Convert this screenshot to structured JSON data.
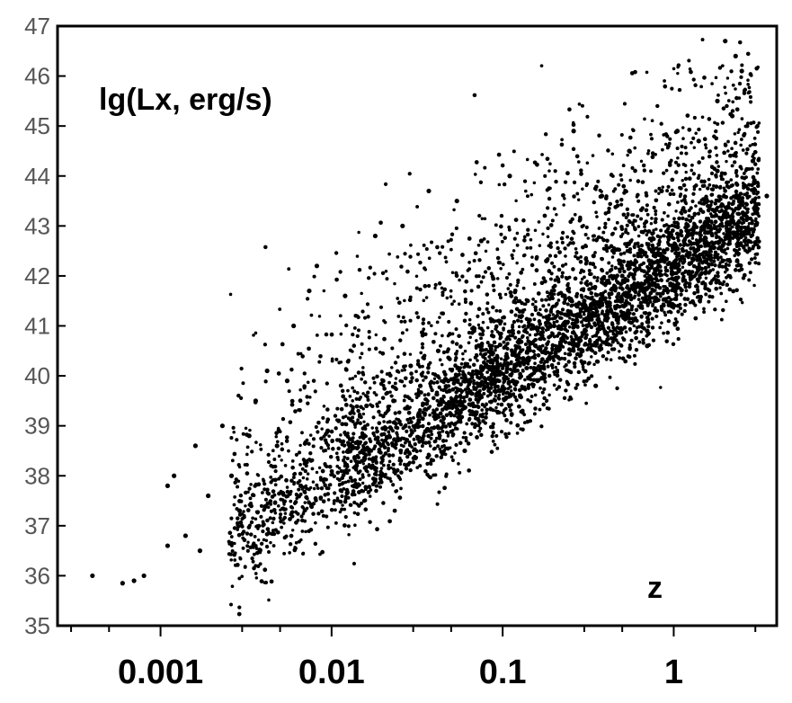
{
  "chart_data": {
    "type": "scatter",
    "title": "",
    "xlabel": "z",
    "ylabel": "lg(Lx, erg/s)",
    "x_scale": "log",
    "xlim": [
      0.00025,
      4.0
    ],
    "ylim": [
      35,
      47
    ],
    "x_ticks": [
      0.001,
      0.01,
      0.1,
      1
    ],
    "x_tick_labels": [
      "0.001",
      "0.01",
      "0.1",
      "1"
    ],
    "y_ticks": [
      35,
      36,
      37,
      38,
      39,
      40,
      41,
      42,
      43,
      44,
      45,
      46,
      47
    ],
    "y_tick_labels": [
      "35",
      "36",
      "37",
      "38",
      "39",
      "40",
      "41",
      "42",
      "43",
      "44",
      "45",
      "46",
      "47"
    ],
    "grid": false,
    "legend": "none",
    "point_color": "#000000",
    "point_count_approx": 5000,
    "series": [
      {
        "x": [
          0.0004,
          0.0006,
          0.0007,
          0.0008,
          0.0011,
          0.0011,
          0.0012,
          0.0014,
          0.0016,
          0.0017,
          0.0019,
          0.0023,
          0.0026,
          0.0029,
          0.0033,
          0.0036,
          0.0042,
          0.0048,
          0.0055,
          0.006,
          0.0066,
          0.0074,
          0.0082,
          0.0095,
          0.011,
          0.012,
          0.014,
          0.016,
          0.018,
          0.02,
          0.023,
          0.026,
          0.029,
          0.033,
          0.037,
          0.042,
          0.048,
          0.054,
          0.06,
          0.068,
          0.075,
          0.085,
          0.095,
          0.11,
          0.12,
          0.14,
          0.16,
          0.18,
          0.2,
          0.23,
          0.26,
          0.3,
          0.34,
          0.38,
          0.43,
          0.5,
          0.55,
          0.62,
          0.7,
          0.78,
          0.85,
          0.95,
          1.05,
          1.2,
          1.4,
          1.6,
          1.8,
          2.0,
          2.2,
          2.5,
          2.9,
          3.5,
          0.15,
          0.35,
          0.06,
          0.7,
          1.8,
          1.9,
          2.3,
          2.6
        ],
        "y": [
          36.0,
          35.85,
          35.9,
          36.0,
          36.6,
          37.8,
          38.0,
          36.8,
          38.6,
          36.5,
          37.6,
          39.0,
          38.0,
          37.3,
          38.8,
          39.5,
          40.1,
          38.6,
          39.9,
          41.0,
          37.8,
          41.7,
          42.2,
          38.9,
          39.1,
          41.6,
          38.2,
          39.4,
          42.8,
          39.9,
          39.5,
          43.0,
          40.2,
          39.8,
          43.7,
          40.5,
          39.9,
          43.5,
          40.0,
          40.9,
          42.7,
          40.3,
          41.1,
          44.0,
          40.4,
          41.5,
          39.9,
          42.3,
          41.0,
          41.6,
          44.9,
          41.5,
          42.4,
          43.6,
          41.3,
          42.0,
          44.5,
          42.4,
          40.9,
          42.1,
          43.7,
          42.8,
          44.9,
          42.8,
          44.7,
          43.1,
          44.1,
          46.7,
          45.2,
          46.1,
          44.3,
          43.6,
          41.0,
          39.8,
          38.5,
          40.6,
          45.5,
          43.4,
          46.4,
          42.7
        ]
      }
    ]
  }
}
